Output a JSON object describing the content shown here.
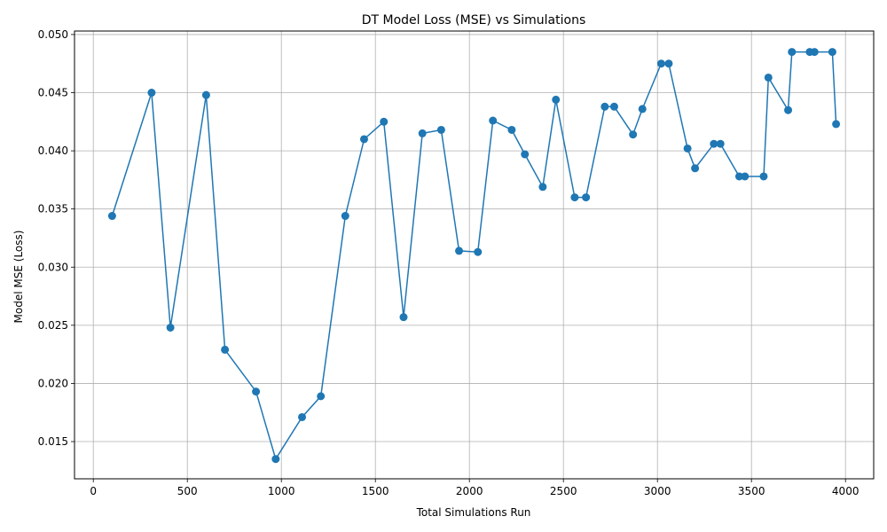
{
  "chart_data": {
    "type": "line",
    "title": "DT Model Loss (MSE) vs Simulations",
    "xlabel": "Total Simulations Run",
    "ylabel": "Model MSE (Loss)",
    "xlim": [
      -100,
      4150
    ],
    "ylim": [
      0.0118,
      0.0503
    ],
    "xticks": [
      0,
      500,
      1000,
      1500,
      2000,
      2500,
      3000,
      3500,
      4000
    ],
    "yticks": [
      0.015,
      0.02,
      0.025,
      0.03,
      0.035,
      0.04,
      0.045,
      0.05
    ],
    "xtick_labels": [
      "0",
      "500",
      "1000",
      "1500",
      "2000",
      "2500",
      "3000",
      "3500",
      "4000"
    ],
    "ytick_labels": [
      "0.015",
      "0.020",
      "0.025",
      "0.030",
      "0.035",
      "0.040",
      "0.045",
      "0.050"
    ],
    "grid": true,
    "color": "#1f77b4",
    "marker": "circle",
    "series": [
      {
        "x": [
          100,
          310,
          410,
          600,
          700,
          865,
          970,
          1110,
          1210,
          1340,
          1440,
          1545,
          1650,
          1750,
          1850,
          1945,
          2045,
          2125,
          2225,
          2295,
          2390,
          2460,
          2560,
          2620,
          2720,
          2770,
          2870,
          2920,
          3020,
          3060,
          3160,
          3200,
          3300,
          3335,
          3435,
          3465,
          3565,
          3590,
          3695,
          3715,
          3810,
          3835,
          3930,
          3950
        ],
        "y": [
          0.0344,
          0.045,
          0.0248,
          0.0448,
          0.0229,
          0.0193,
          0.0135,
          0.0171,
          0.0189,
          0.0344,
          0.041,
          0.0425,
          0.0257,
          0.0415,
          0.0418,
          0.0314,
          0.0313,
          0.0426,
          0.0418,
          0.0397,
          0.0369,
          0.0444,
          0.036,
          0.036,
          0.0438,
          0.0438,
          0.0414,
          0.0436,
          0.0475,
          0.0475,
          0.0402,
          0.0385,
          0.0406,
          0.0406,
          0.0378,
          0.0378,
          0.0378,
          0.0463,
          0.0435,
          0.0485,
          0.0485,
          0.0485,
          0.0485,
          0.0423
        ]
      }
    ]
  }
}
